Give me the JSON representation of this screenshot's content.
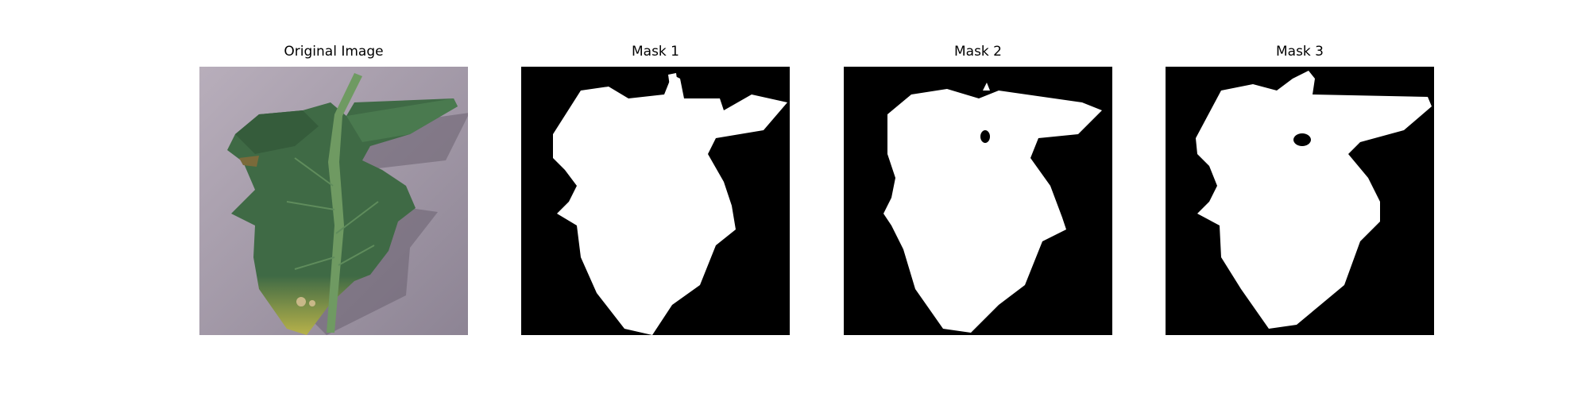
{
  "panels": [
    {
      "title": "Original Image",
      "kind": "photo",
      "subject": "leaf-photo"
    },
    {
      "title": "Mask 1",
      "kind": "mask",
      "variant": 1
    },
    {
      "title": "Mask 2",
      "kind": "mask",
      "variant": 2
    },
    {
      "title": "Mask 3",
      "kind": "mask",
      "variant": 3
    }
  ],
  "colors": {
    "mask_background": "#000000",
    "mask_foreground": "#ffffff",
    "photo_background": "#a49aa8",
    "leaf": "#3f6a45",
    "leaf_dark": "#2d5233",
    "leaf_tip": "#b8b24a"
  }
}
